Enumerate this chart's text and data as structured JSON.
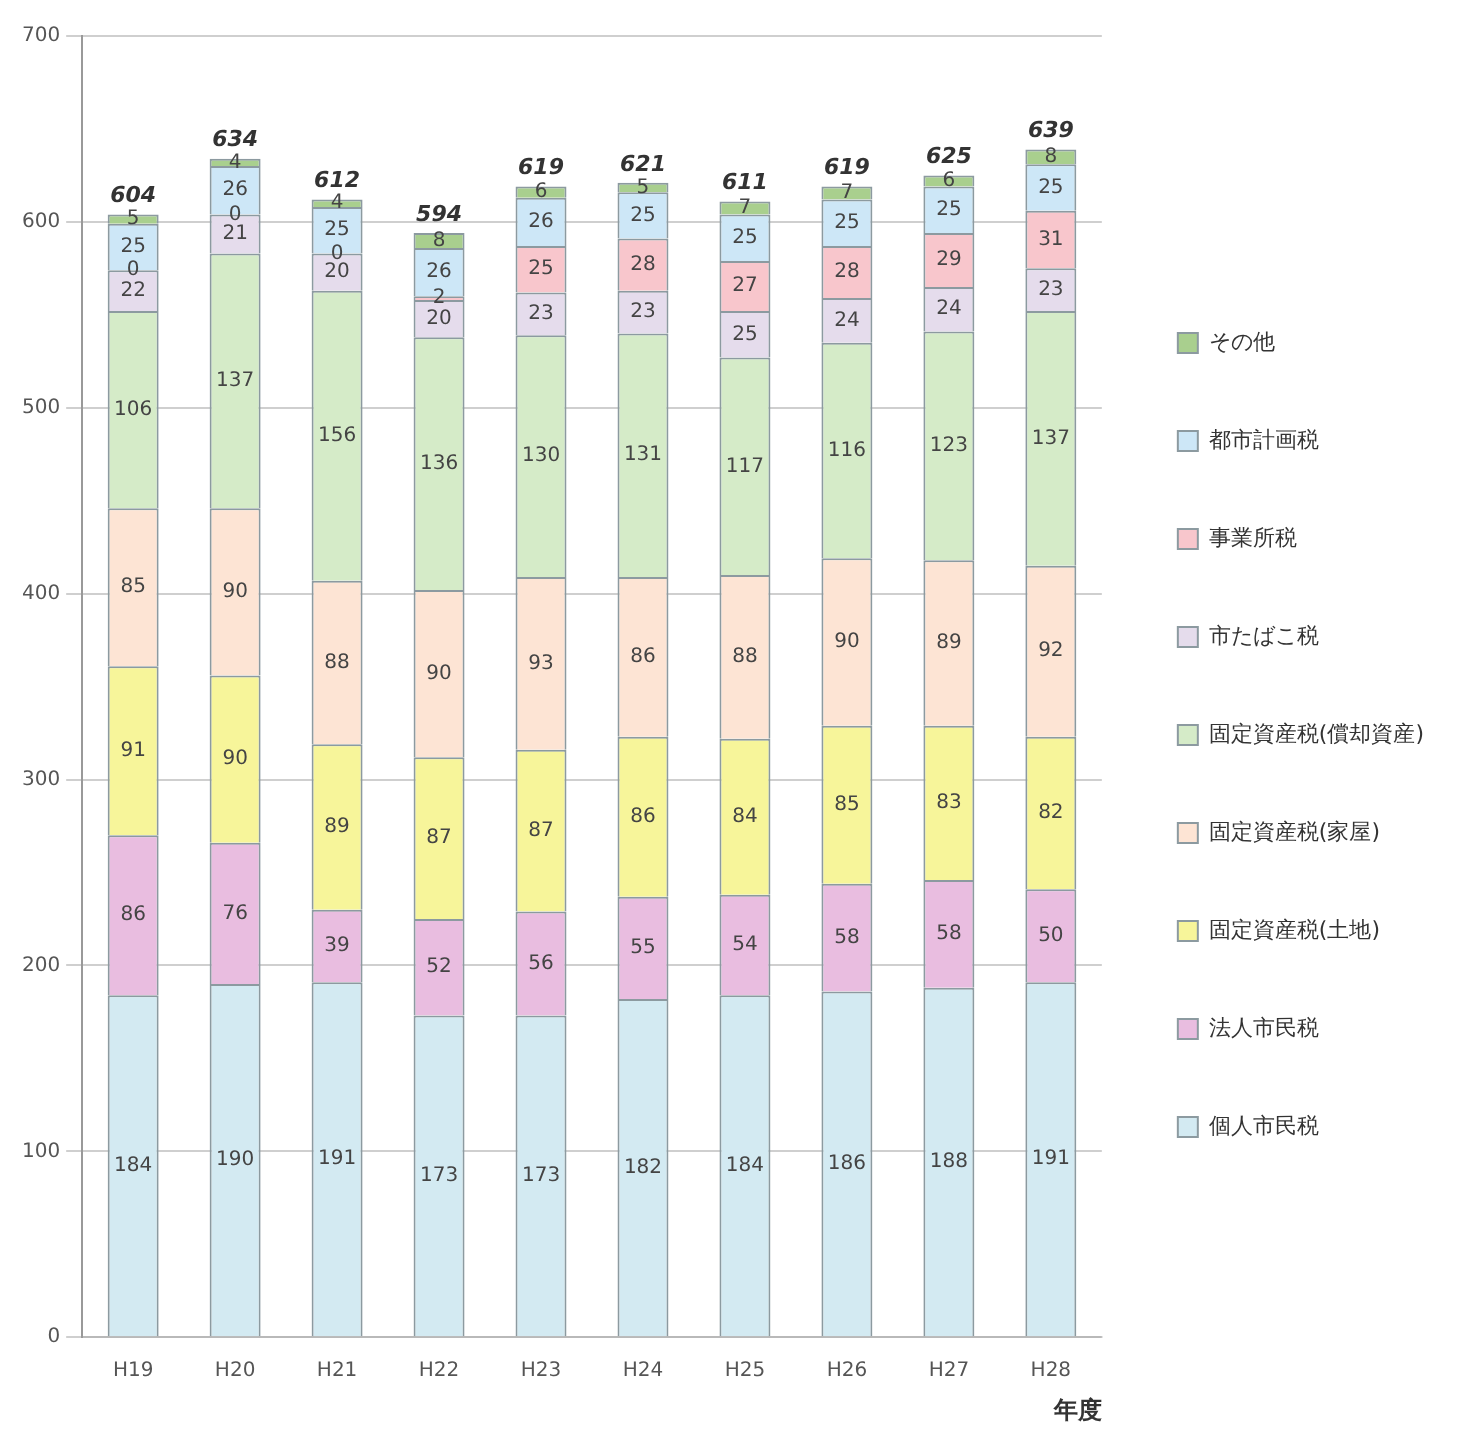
{
  "chart_data": {
    "type": "bar",
    "stacked": true,
    "categories": [
      "H19",
      "H20",
      "H21",
      "H22",
      "H23",
      "H24",
      "H25",
      "H26",
      "H27",
      "H28"
    ],
    "xlabel": "年度",
    "ylim": [
      0,
      700
    ],
    "yticks": [
      0,
      100,
      200,
      300,
      400,
      500,
      600,
      700
    ],
    "grid": "y",
    "legend": "right",
    "data_labels": true,
    "totals": [
      "604",
      "634",
      "612",
      "594",
      "619",
      "621",
      "611",
      "619",
      "625",
      "639"
    ],
    "series": [
      {
        "name": "個人市民税",
        "color": "#d3eaf2",
        "values": [
          184,
          190,
          191,
          173,
          173,
          182,
          184,
          186,
          188,
          191
        ]
      },
      {
        "name": "法人市民税",
        "color": "#e9bde0",
        "values": [
          86,
          76,
          39,
          52,
          56,
          55,
          54,
          58,
          58,
          50
        ]
      },
      {
        "name": "固定資産税(土地)",
        "color": "#f7f59a",
        "values": [
          91,
          90,
          89,
          87,
          87,
          86,
          84,
          85,
          83,
          82
        ]
      },
      {
        "name": "固定資産税(家屋)",
        "color": "#fde4d4",
        "values": [
          85,
          90,
          88,
          90,
          93,
          86,
          88,
          90,
          89,
          92
        ]
      },
      {
        "name": "固定資産税(償却資産)",
        "color": "#d5ebc8",
        "values": [
          106,
          137,
          156,
          136,
          130,
          131,
          117,
          116,
          123,
          137
        ]
      },
      {
        "name": "市たばこ税",
        "color": "#e5dcec",
        "values": [
          22,
          21,
          20,
          20,
          23,
          23,
          25,
          24,
          24,
          23
        ]
      },
      {
        "name": "事業所税",
        "color": "#f8c6cc",
        "values": [
          0,
          0,
          0,
          2,
          25,
          28,
          27,
          28,
          29,
          31
        ]
      },
      {
        "name": "都市計画税",
        "color": "#cde7f7",
        "values": [
          25,
          26,
          25,
          26,
          26,
          25,
          25,
          25,
          25,
          25
        ]
      },
      {
        "name": "その他",
        "color": "#a9cf8e",
        "values": [
          5,
          4,
          4,
          8,
          6,
          5,
          7,
          7,
          6,
          8
        ]
      }
    ]
  }
}
